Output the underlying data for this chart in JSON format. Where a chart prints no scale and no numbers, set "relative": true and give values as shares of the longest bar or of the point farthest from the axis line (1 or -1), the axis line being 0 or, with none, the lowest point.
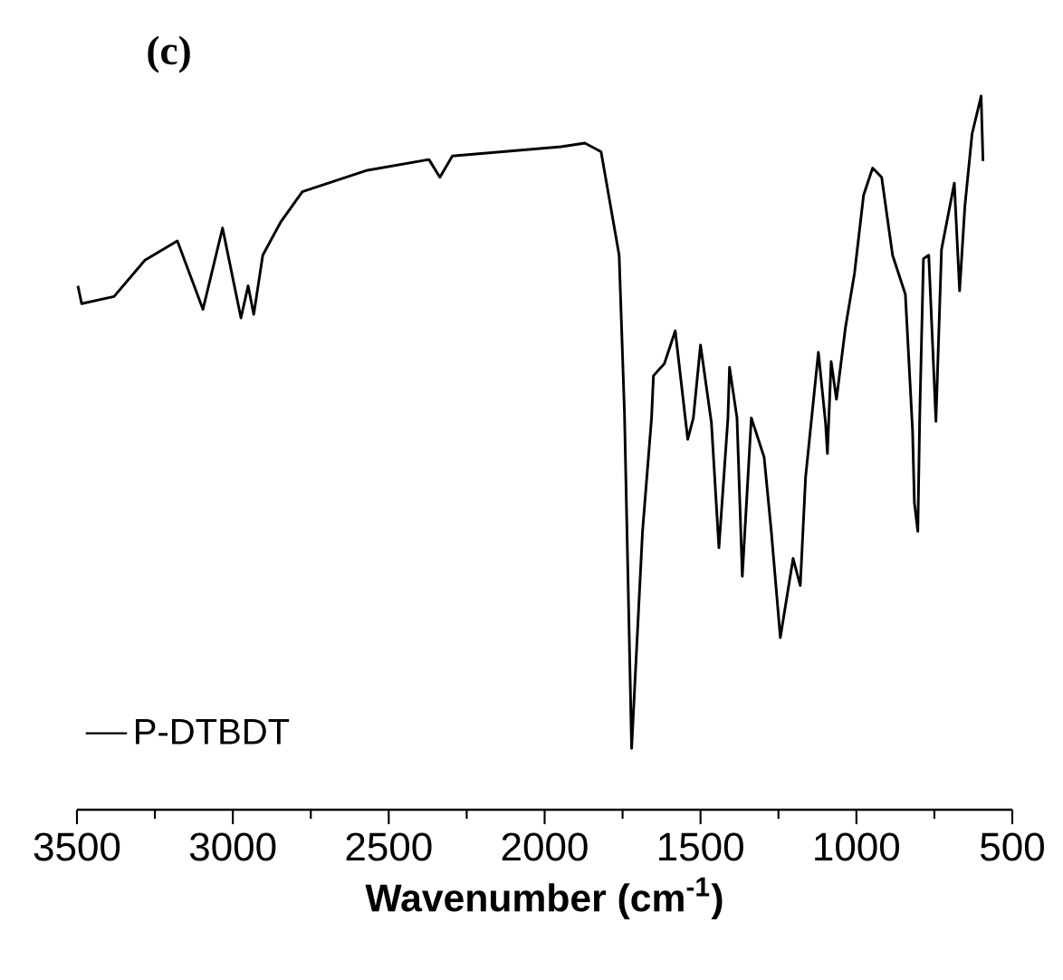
{
  "chart_data": {
    "type": "line",
    "title": "(c)",
    "xlabel": "Wavenumber (cm$^{-1}$)",
    "relative": true,
    "xlim": [
      3500,
      500
    ],
    "xticks": [
      3500,
      3000,
      2500,
      2000,
      1500,
      1000,
      500
    ],
    "legend": "bottom left",
    "grid": false,
    "series": [
      {
        "name": "P-DTBDT",
        "color": "#000000",
        "x": [
          3497,
          3485,
          3381,
          3282,
          3178,
          3096,
          3033,
          2974,
          2951,
          2933,
          2904,
          2847,
          2777,
          2568,
          2371,
          2336,
          2296,
          1947,
          1871,
          1819,
          1761,
          1744,
          1721,
          1686,
          1657,
          1651,
          1616,
          1581,
          1541,
          1523,
          1500,
          1465,
          1441,
          1412,
          1407,
          1383,
          1366,
          1337,
          1296,
          1273,
          1244,
          1203,
          1180,
          1163,
          1122,
          1099,
          1093,
          1081,
          1064,
          1035,
          1006,
          977,
          948,
          919,
          884,
          843,
          820,
          814,
          803,
          797,
          785,
          768,
          745,
          727,
          686,
          669,
          652,
          629,
          600,
          594
        ],
        "values": [
          0.734,
          0.709,
          0.719,
          0.77,
          0.797,
          0.701,
          0.815,
          0.689,
          0.734,
          0.694,
          0.777,
          0.823,
          0.866,
          0.896,
          0.911,
          0.886,
          0.916,
          0.929,
          0.934,
          0.922,
          0.777,
          0.557,
          0.086,
          0.39,
          0.549,
          0.608,
          0.625,
          0.671,
          0.519,
          0.549,
          0.651,
          0.542,
          0.367,
          0.549,
          0.62,
          0.549,
          0.327,
          0.549,
          0.494,
          0.39,
          0.241,
          0.352,
          0.314,
          0.466,
          0.641,
          0.542,
          0.499,
          0.628,
          0.575,
          0.676,
          0.752,
          0.861,
          0.899,
          0.886,
          0.777,
          0.722,
          0.532,
          0.43,
          0.39,
          0.549,
          0.772,
          0.777,
          0.544,
          0.785,
          0.878,
          0.727,
          0.846,
          0.947,
          1.0,
          0.909
        ]
      }
    ]
  }
}
